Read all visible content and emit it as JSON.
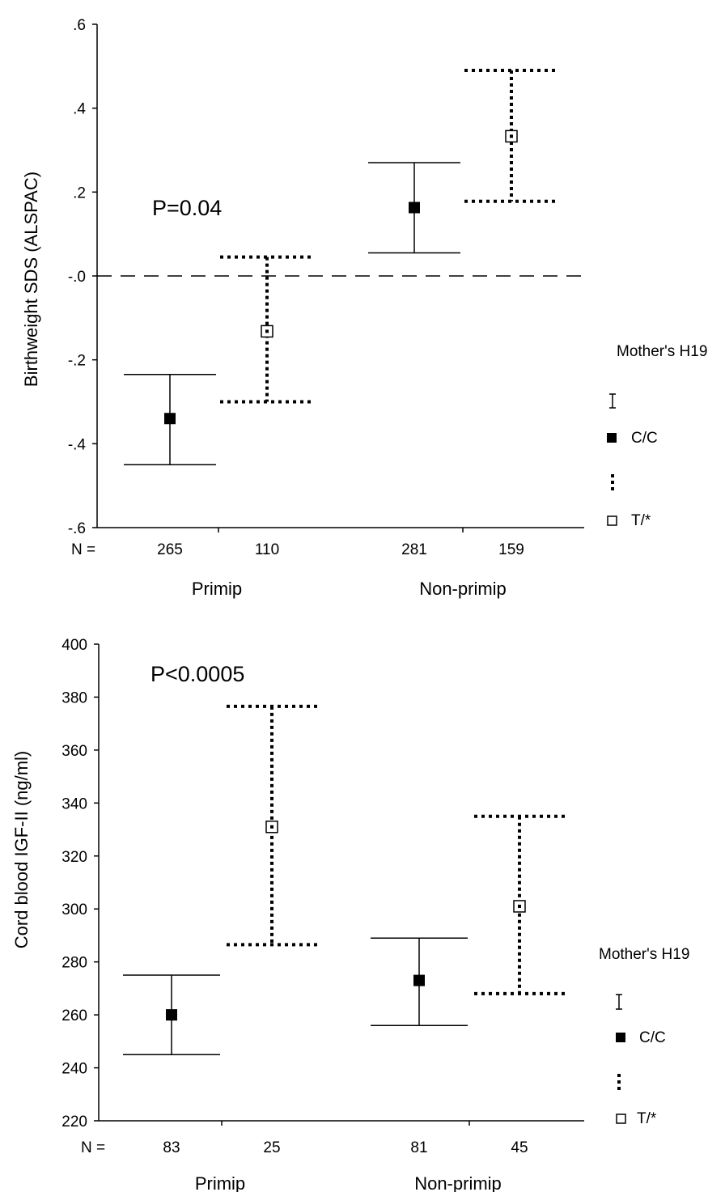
{
  "chart_data": [
    {
      "type": "errorbar",
      "ylabel": "Birthweight SDS (ALSPAC)",
      "ylim": [
        -0.6,
        0.6
      ],
      "yticks": [
        {
          "value": 0.6,
          "label": ".6"
        },
        {
          "value": 0.4,
          "label": ".4"
        },
        {
          "value": 0.2,
          "label": ".2"
        },
        {
          "value": 0.0,
          "label": "-.0"
        },
        {
          "value": -0.2,
          "label": "-.2"
        },
        {
          "value": -0.4,
          "label": "-.4"
        },
        {
          "value": -0.6,
          "label": "-.6"
        }
      ],
      "reference_line": 0.0,
      "annotation": "P=0.04",
      "n_prefix": "N =",
      "groups": [
        "Primip",
        "Non-primip"
      ],
      "series": [
        {
          "name": "C/C",
          "style": "solid",
          "marker": "filled-square",
          "points": [
            {
              "group": "Primip",
              "n": "265",
              "mean": -0.34,
              "lower": -0.45,
              "upper": -0.235
            },
            {
              "group": "Non-primip",
              "n": "281",
              "mean": 0.163,
              "lower": 0.055,
              "upper": 0.27
            }
          ]
        },
        {
          "name": "T/*",
          "style": "dotted",
          "marker": "open-square",
          "points": [
            {
              "group": "Primip",
              "n": "110",
              "mean": -0.132,
              "lower": -0.3,
              "upper": 0.045
            },
            {
              "group": "Non-primip",
              "n": "159",
              "mean": 0.333,
              "lower": 0.178,
              "upper": 0.49
            }
          ]
        }
      ],
      "legend": {
        "title": "Mother's H19",
        "items": [
          "C/C",
          "T/*"
        ]
      }
    },
    {
      "type": "errorbar",
      "ylabel": "Cord blood IGF-II (ng/ml)",
      "ylim": [
        220,
        400
      ],
      "yticks": [
        {
          "value": 400,
          "label": "400"
        },
        {
          "value": 380,
          "label": "380"
        },
        {
          "value": 360,
          "label": "360"
        },
        {
          "value": 340,
          "label": "340"
        },
        {
          "value": 320,
          "label": "320"
        },
        {
          "value": 300,
          "label": "300"
        },
        {
          "value": 280,
          "label": "280"
        },
        {
          "value": 260,
          "label": "260"
        },
        {
          "value": 240,
          "label": "240"
        },
        {
          "value": 220,
          "label": "220"
        }
      ],
      "annotation": "P<0.0005",
      "n_prefix": "N =",
      "groups": [
        "Primip",
        "Non-primip"
      ],
      "series": [
        {
          "name": "C/C",
          "style": "solid",
          "marker": "filled-square",
          "points": [
            {
              "group": "Primip",
              "n": "83",
              "mean": 260,
              "lower": 245,
              "upper": 275
            },
            {
              "group": "Non-primip",
              "n": "81",
              "mean": 273,
              "lower": 256,
              "upper": 289
            }
          ]
        },
        {
          "name": "T/*",
          "style": "dotted",
          "marker": "open-square",
          "points": [
            {
              "group": "Primip",
              "n": "25",
              "mean": 331,
              "lower": 286.5,
              "upper": 376.5
            },
            {
              "group": "Non-primip",
              "n": "45",
              "mean": 301,
              "lower": 268,
              "upper": 335
            }
          ]
        }
      ],
      "legend": {
        "title": "Mother's H19",
        "items": [
          "C/C",
          "T/*"
        ]
      }
    }
  ]
}
